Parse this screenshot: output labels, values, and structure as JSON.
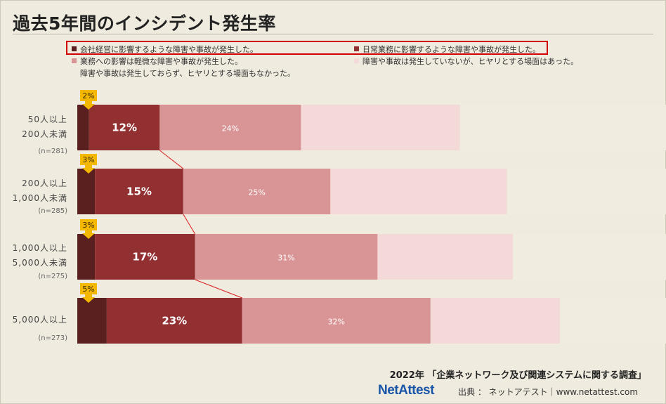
{
  "title": "過去5年間のインシデント発生率",
  "legend": [
    {
      "label": "会社経営に影響するような障害や事故が発生した。",
      "color": "#5a2020"
    },
    {
      "label": "日常業務に影響するような障害や事故が発生した。",
      "color": "#922f30"
    },
    {
      "label": "業務への影響は軽微な障害や事故が発生した。",
      "color": "#d99495"
    },
    {
      "label": "障害や事故は発生していないが、ヒヤリとする場面はあった。",
      "color": "#f3d9d7"
    },
    {
      "label": "障害や事故は発生しておらず、ヒヤリとする場面もなかった。",
      "color": "#f1ece0"
    }
  ],
  "chart_data": {
    "type": "bar",
    "orientation": "horizontal",
    "stacked": true,
    "categories": [
      {
        "line1": "50人以上",
        "line2": "200人未満",
        "n": "(n=281)"
      },
      {
        "line1": "200人以上",
        "line2": "1,000人未満",
        "n": "(n=285)"
      },
      {
        "line1": "1,000人以上",
        "line2": "5,000人未満",
        "n": "(n=275)"
      },
      {
        "line1": "5,000人以上",
        "line2": "",
        "n": "(n=273)"
      }
    ],
    "series": [
      {
        "name": "会社経営に影響するような障害や事故が発生した。",
        "values": [
          2,
          3,
          3,
          5
        ],
        "labels": [
          "2%",
          "3%",
          "3%",
          "5%"
        ],
        "color": "#5a2020"
      },
      {
        "name": "日常業務に影響するような障害や事故が発生した。",
        "values": [
          12,
          15,
          17,
          23
        ],
        "labels": [
          "12%",
          "15%",
          "17%",
          "23%"
        ],
        "color": "#922f30"
      },
      {
        "name": "業務への影響は軽微な障害や事故が発生した。",
        "values": [
          24,
          25,
          31,
          32
        ],
        "labels": [
          "24%",
          "25%",
          "31%",
          "32%"
        ],
        "color": "#d99495"
      },
      {
        "name": "障害や事故は発生していないが、ヒヤリとする場面はあった。",
        "values": [
          27,
          30,
          23,
          22
        ],
        "labels": [
          "",
          "",
          "",
          ""
        ],
        "color": "#f3d9d7"
      },
      {
        "name": "障害や事故は発生しておらず、ヒヤリとする場面もなかった。",
        "values": [
          35,
          27,
          26,
          18
        ],
        "labels": [
          "",
          "",
          "",
          ""
        ],
        "color": "#f1ece0"
      }
    ],
    "xlim": [
      0,
      100
    ],
    "callout_color": "#f5b800",
    "connector_color": "#d91c1c"
  },
  "footer": {
    "survey": "2022年 「企業ネットワーク及び関連システムに関する調査」",
    "logo": "NetAttest",
    "source": "出典 ： ネットアテスト｜www.netattest.com"
  }
}
